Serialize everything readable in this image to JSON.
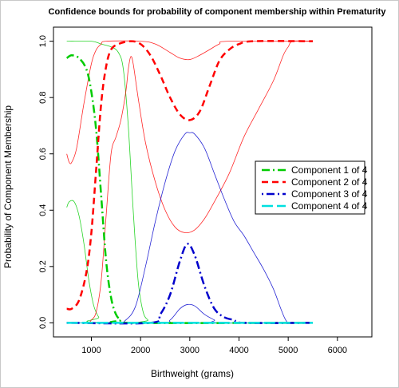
{
  "chart_data": {
    "type": "line",
    "title": "Confidence bounds for probability of component membership within Prematurity",
    "xlabel": "Birthweight (grams)",
    "ylabel": "Probability of Component Membership",
    "xlim": [
      500,
      6000
    ],
    "ylim": [
      0,
      1
    ],
    "xticks": [
      1000,
      2000,
      3000,
      4000,
      5000,
      6000
    ],
    "yticks": [
      0.0,
      0.2,
      0.4,
      0.6,
      0.8,
      1.0
    ],
    "grid": false,
    "legend_position": "right",
    "series": [
      {
        "name": "Component 1 of 4",
        "color": "#00cc00",
        "style": "dashdot",
        "estimate": [
          [
            500,
            0.94
          ],
          [
            600,
            0.95
          ],
          [
            750,
            0.94
          ],
          [
            900,
            0.9
          ],
          [
            1000,
            0.82
          ],
          [
            1100,
            0.68
          ],
          [
            1200,
            0.45
          ],
          [
            1300,
            0.22
          ],
          [
            1400,
            0.09
          ],
          [
            1500,
            0.03
          ],
          [
            1600,
            0.01
          ],
          [
            1700,
            0.0
          ],
          [
            5500,
            0.0
          ]
        ],
        "upper": [
          [
            500,
            1.0
          ],
          [
            1000,
            1.0
          ],
          [
            1200,
            0.99
          ],
          [
            1400,
            0.98
          ],
          [
            1550,
            0.96
          ],
          [
            1650,
            0.9
          ],
          [
            1750,
            0.7
          ],
          [
            1850,
            0.4
          ],
          [
            1950,
            0.15
          ],
          [
            2050,
            0.04
          ],
          [
            2150,
            0.01
          ],
          [
            2250,
            0.0
          ],
          [
            5500,
            0.0
          ]
        ],
        "lower": [
          [
            500,
            0.41
          ],
          [
            550,
            0.43
          ],
          [
            650,
            0.43
          ],
          [
            750,
            0.38
          ],
          [
            850,
            0.28
          ],
          [
            950,
            0.15
          ],
          [
            1050,
            0.06
          ],
          [
            1150,
            0.02
          ],
          [
            1250,
            0.0
          ],
          [
            5500,
            0.0
          ]
        ]
      },
      {
        "name": "Component 2 of 4",
        "color": "#ff0000",
        "style": "dashed",
        "estimate": [
          [
            500,
            0.05
          ],
          [
            600,
            0.05
          ],
          [
            750,
            0.08
          ],
          [
            900,
            0.18
          ],
          [
            1000,
            0.32
          ],
          [
            1100,
            0.55
          ],
          [
            1200,
            0.78
          ],
          [
            1300,
            0.91
          ],
          [
            1400,
            0.97
          ],
          [
            1550,
            0.99
          ],
          [
            1800,
            1.0
          ],
          [
            2000,
            0.99
          ],
          [
            2200,
            0.95
          ],
          [
            2400,
            0.88
          ],
          [
            2600,
            0.8
          ],
          [
            2800,
            0.74
          ],
          [
            3000,
            0.72
          ],
          [
            3200,
            0.75
          ],
          [
            3400,
            0.84
          ],
          [
            3600,
            0.93
          ],
          [
            3800,
            0.97
          ],
          [
            4000,
            0.99
          ],
          [
            4300,
            1.0
          ],
          [
            5500,
            1.0
          ]
        ],
        "upper": [
          [
            500,
            0.6
          ],
          [
            550,
            0.57
          ],
          [
            600,
            0.57
          ],
          [
            700,
            0.62
          ],
          [
            850,
            0.78
          ],
          [
            1000,
            0.92
          ],
          [
            1100,
            0.97
          ],
          [
            1200,
            0.99
          ],
          [
            1300,
            1.0
          ],
          [
            2000,
            1.0
          ],
          [
            2300,
            0.99
          ],
          [
            2600,
            0.96
          ],
          [
            2800,
            0.94
          ],
          [
            3000,
            0.935
          ],
          [
            3200,
            0.95
          ],
          [
            3400,
            0.97
          ],
          [
            3600,
            0.99
          ],
          [
            3800,
            1.0
          ],
          [
            5500,
            1.0
          ]
        ],
        "lower": [
          [
            500,
            0.0
          ],
          [
            900,
            0.0
          ],
          [
            1000,
            0.01
          ],
          [
            1100,
            0.04
          ],
          [
            1200,
            0.15
          ],
          [
            1300,
            0.38
          ],
          [
            1400,
            0.6
          ],
          [
            1500,
            0.66
          ],
          [
            1600,
            0.72
          ],
          [
            1700,
            0.82
          ],
          [
            1750,
            0.9
          ],
          [
            1800,
            0.945
          ],
          [
            1850,
            0.92
          ],
          [
            1950,
            0.8
          ],
          [
            2100,
            0.64
          ],
          [
            2300,
            0.5
          ],
          [
            2500,
            0.4
          ],
          [
            2700,
            0.34
          ],
          [
            2900,
            0.32
          ],
          [
            3100,
            0.33
          ],
          [
            3300,
            0.37
          ],
          [
            3500,
            0.43
          ],
          [
            3800,
            0.53
          ],
          [
            4100,
            0.66
          ],
          [
            4400,
            0.76
          ],
          [
            4700,
            0.86
          ],
          [
            4900,
            0.95
          ],
          [
            5000,
            0.98
          ],
          [
            5100,
            1.0
          ],
          [
            5500,
            1.0
          ]
        ]
      },
      {
        "name": "Component 3 of 4",
        "color": "#0000cc",
        "style": "dotdash",
        "estimate": [
          [
            500,
            0.0
          ],
          [
            2200,
            0.0
          ],
          [
            2400,
            0.03
          ],
          [
            2600,
            0.1
          ],
          [
            2800,
            0.22
          ],
          [
            2950,
            0.28
          ],
          [
            3100,
            0.24
          ],
          [
            3300,
            0.13
          ],
          [
            3500,
            0.05
          ],
          [
            3700,
            0.02
          ],
          [
            3900,
            0.01
          ],
          [
            4100,
            0.0
          ],
          [
            5500,
            0.0
          ]
        ],
        "upper": [
          [
            500,
            0.0
          ],
          [
            1500,
            0.0
          ],
          [
            1700,
            0.01
          ],
          [
            1900,
            0.06
          ],
          [
            2100,
            0.2
          ],
          [
            2300,
            0.36
          ],
          [
            2500,
            0.5
          ],
          [
            2700,
            0.61
          ],
          [
            2900,
            0.67
          ],
          [
            3000,
            0.675
          ],
          [
            3100,
            0.67
          ],
          [
            3300,
            0.62
          ],
          [
            3500,
            0.53
          ],
          [
            3700,
            0.44
          ],
          [
            3900,
            0.36
          ],
          [
            4100,
            0.31
          ],
          [
            4300,
            0.25
          ],
          [
            4500,
            0.19
          ],
          [
            4700,
            0.12
          ],
          [
            4850,
            0.05
          ],
          [
            4950,
            0.01
          ],
          [
            5050,
            0.0
          ],
          [
            5500,
            0.0
          ]
        ],
        "lower": [
          [
            500,
            0.0
          ],
          [
            2400,
            0.0
          ],
          [
            2600,
            0.01
          ],
          [
            2800,
            0.05
          ],
          [
            2950,
            0.065
          ],
          [
            3100,
            0.06
          ],
          [
            3300,
            0.03
          ],
          [
            3500,
            0.01
          ],
          [
            3600,
            0.0
          ],
          [
            5500,
            0.0
          ]
        ]
      },
      {
        "name": "Component 4 of 4",
        "color": "#00e0e0",
        "style": "longdash",
        "estimate": [
          [
            500,
            0.0
          ],
          [
            5500,
            0.0
          ]
        ],
        "upper": [
          [
            500,
            0.0
          ],
          [
            5500,
            0.0
          ]
        ],
        "lower": [
          [
            500,
            0.0
          ],
          [
            5500,
            0.0
          ]
        ]
      }
    ]
  }
}
